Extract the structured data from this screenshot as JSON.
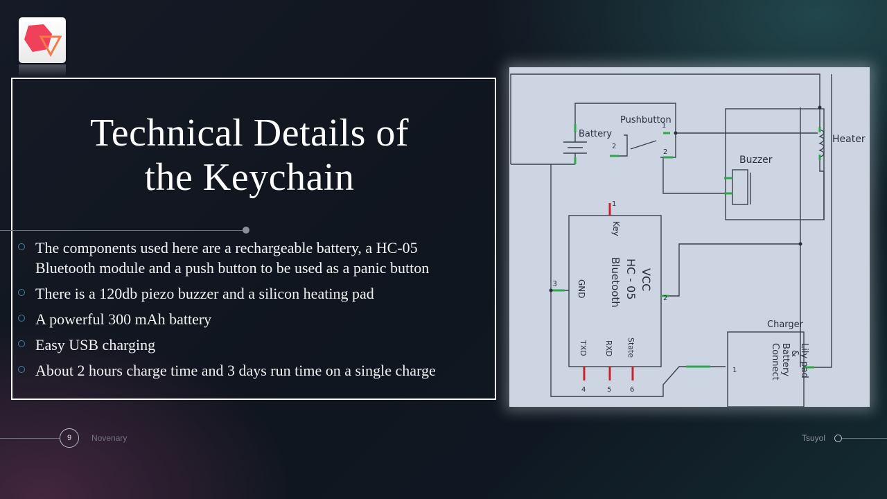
{
  "slide": {
    "title_line1": "Technical Details of",
    "title_line2": "the Keychain",
    "bullets": [
      {
        "line1": "The components used here are a rechargeable battery, a HC-05",
        "line2": "Bluetooth module and a push button to be used as a panic button"
      },
      {
        "line1": "There is a 120db piezo buzzer and a silicon heating pad",
        "line2": ""
      },
      {
        "line1": "A powerful 300 mAh battery",
        "line2": ""
      },
      {
        "line1": "Easy USB charging",
        "line2": ""
      },
      {
        "line1": "About 2 hours charge time and 3 days run time on a single charge",
        "line2": ""
      }
    ]
  },
  "schematic": {
    "labels": {
      "battery": "Battery",
      "pushbutton": "Pushbutton",
      "buzzer": "Buzzer",
      "heater": "Heater",
      "charger": "Charger",
      "key": "Key",
      "vcc": "VCC",
      "hc05": "HC - 05",
      "bluetooth": "Bluetooth",
      "gnd": "GND",
      "txd": "TXD",
      "rxd": "RXD",
      "state": "State",
      "lilypad1": "Lily pad",
      "lilypad2": "Battery",
      "lilypad3": "Connect",
      "lilypad_amp": "&"
    },
    "pins": {
      "p1": "1",
      "p2": "2",
      "p3": "3",
      "p4": "4",
      "p5": "5",
      "p6": "6",
      "pb1": "1",
      "pb2": "2",
      "pb3": "2",
      "ch1": "1"
    }
  },
  "footer": {
    "page_number": "9",
    "left_text": "Novenary",
    "right_text": "Tsuyol"
  },
  "colors": {
    "accent_bullet": "#3f86a8",
    "logo_red": "#f0415a",
    "logo_orange": "#f47a4a"
  }
}
